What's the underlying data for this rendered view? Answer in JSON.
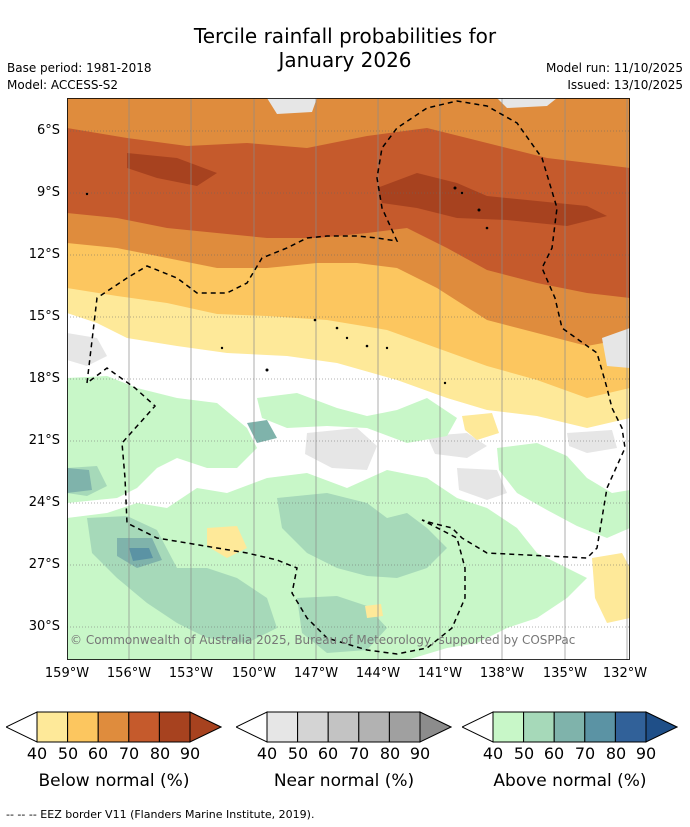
{
  "title_line1": "Tercile rainfall probabilities for",
  "title_line2": "January 2026",
  "meta": {
    "base_period": "Base period: 1981-2018",
    "model": "Model: ACCESS-S2",
    "model_run": "Model run: 11/10/2025",
    "issued": "Issued: 13/10/2025"
  },
  "copyright": "© Commonwealth of Australia 2025, Bureau of Meteorology, supported by COSPPac",
  "lat_labels": [
    "6°S",
    "9°S",
    "12°S",
    "15°S",
    "18°S",
    "21°S",
    "24°S",
    "27°S",
    "30°S"
  ],
  "lon_labels": [
    "159°W",
    "156°W",
    "153°W",
    "150°W",
    "147°W",
    "144°W",
    "141°W",
    "138°W",
    "135°W",
    "132°W"
  ],
  "legend": {
    "ticks": [
      "40",
      "50",
      "60",
      "70",
      "80",
      "90"
    ],
    "below": {
      "label": "Below normal (%)",
      "colors": [
        "#fee999",
        "#fcc65f",
        "#df8c3d",
        "#c55a2c",
        "#a7421f"
      ],
      "arrow": "#a7421f"
    },
    "near": {
      "label": "Near normal (%)",
      "colors": [
        "#e6e6e6",
        "#d4d4d4",
        "#c3c3c3",
        "#b2b2b2",
        "#a0a0a0"
      ],
      "arrow": "#8c8c8c"
    },
    "above": {
      "label": "Above normal (%)",
      "colors": [
        "#c8f7c8",
        "#a6d9b9",
        "#7fb3ab",
        "#5b93a4",
        "#316199"
      ],
      "arrow": "#1f4f88"
    }
  },
  "footnote": "--  --  -- EEZ border V11 (Flanders Marine Institute, 2019)."
}
